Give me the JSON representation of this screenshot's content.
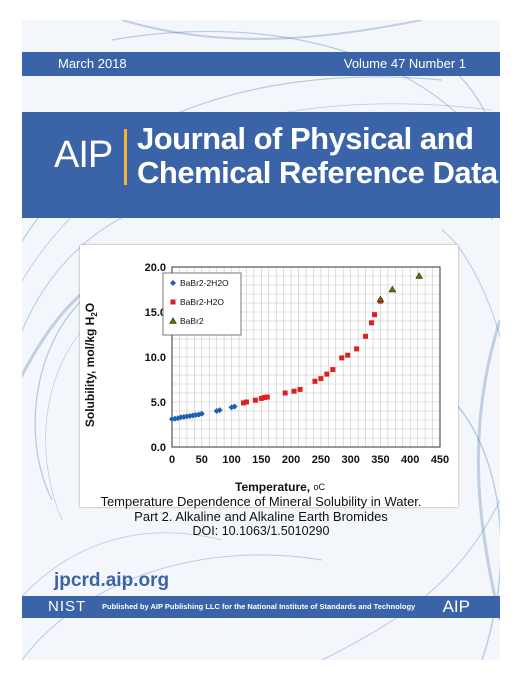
{
  "header": {
    "date": "March 2018",
    "volume": "Volume 47 Number 1"
  },
  "logo": {
    "text": "AIP"
  },
  "journal": {
    "title_line1": "Journal of Physical and",
    "title_line2": "Chemical Reference Data"
  },
  "article": {
    "title_line1": "Temperature Dependence of Mineral Solubility in Water.",
    "title_line2": "Part 2. Alkaline and Alkaline Earth Bromides",
    "doi": "DOI: 10.1063/1.5010290"
  },
  "website": "jpcrd.aip.org",
  "footer": {
    "nist": "NIST",
    "publisher": "Published by AIP Publishing LLC for the National Institute of Standards and Technology",
    "aip": "AIP"
  },
  "colors": {
    "brand_blue": "#3a63a8",
    "logo_accent": "#f2b632",
    "series1": "#1f5fae",
    "series2": "#e02020",
    "series3": "#6b6b00"
  },
  "chart_data": {
    "type": "scatter",
    "xlabel": "Temperature, ",
    "xlabel_unit": "oC",
    "ylabel": "Solubility, mol/kg H",
    "ylabel_sub": "2",
    "ylabel_tail": "O",
    "xlim": [
      0,
      450
    ],
    "ylim": [
      0,
      20
    ],
    "x_ticks": [
      0,
      50,
      100,
      150,
      200,
      250,
      300,
      350,
      400,
      450
    ],
    "y_ticks": [
      0.0,
      5.0,
      10.0,
      15.0,
      20.0
    ],
    "x_tick_labels": [
      "0",
      "50",
      "100",
      "150",
      "200",
      "250",
      "300",
      "350",
      "400",
      "450"
    ],
    "y_tick_labels": [
      "0.0",
      "5.0",
      "10.0",
      "15.0",
      "20.0"
    ],
    "grid": true,
    "legend_position": "top-left",
    "series": [
      {
        "name": "BaBr2-2H2O",
        "marker": "diamond",
        "points": [
          [
            0,
            3.1
          ],
          [
            5,
            3.15
          ],
          [
            10,
            3.2
          ],
          [
            15,
            3.3
          ],
          [
            20,
            3.35
          ],
          [
            25,
            3.4
          ],
          [
            30,
            3.45
          ],
          [
            35,
            3.5
          ],
          [
            40,
            3.55
          ],
          [
            45,
            3.6
          ],
          [
            50,
            3.7
          ],
          [
            75,
            4.0
          ],
          [
            80,
            4.1
          ],
          [
            100,
            4.4
          ],
          [
            105,
            4.5
          ]
        ]
      },
      {
        "name": "BaBr2-H2O",
        "marker": "square",
        "points": [
          [
            120,
            4.9
          ],
          [
            125,
            5.0
          ],
          [
            140,
            5.2
          ],
          [
            150,
            5.4
          ],
          [
            155,
            5.5
          ],
          [
            160,
            5.55
          ],
          [
            190,
            6.0
          ],
          [
            205,
            6.2
          ],
          [
            215,
            6.4
          ],
          [
            240,
            7.3
          ],
          [
            250,
            7.6
          ],
          [
            260,
            8.1
          ],
          [
            270,
            8.6
          ],
          [
            285,
            9.9
          ],
          [
            295,
            10.2
          ],
          [
            310,
            10.9
          ],
          [
            325,
            12.3
          ],
          [
            335,
            13.8
          ],
          [
            340,
            14.7
          ],
          [
            350,
            16.2
          ]
        ]
      },
      {
        "name": "BaBr2",
        "marker": "triangle",
        "points": [
          [
            350,
            16.4
          ],
          [
            370,
            17.5
          ],
          [
            415,
            19.0
          ]
        ]
      }
    ]
  }
}
